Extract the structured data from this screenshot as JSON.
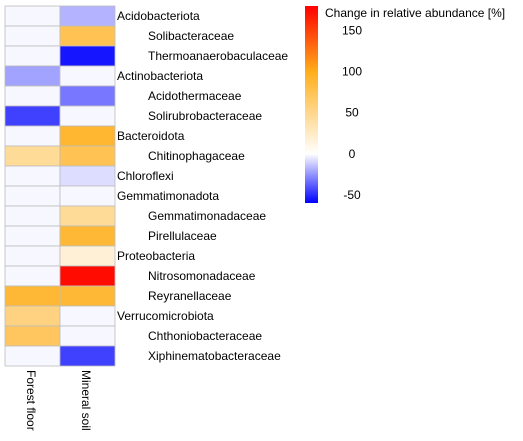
{
  "chart_data": {
    "type": "heatmap",
    "columns": [
      "Forest floor",
      "Mineral soil"
    ],
    "rows": [
      {
        "label": "Acidobacteriota",
        "level": "phylum",
        "values": [
          -2,
          -18
        ]
      },
      {
        "label": "Solibacteraceae",
        "level": "family",
        "values": [
          -2,
          75
        ]
      },
      {
        "label": "Thermoanaerobaculaceae",
        "level": "family",
        "values": [
          -2,
          -55
        ]
      },
      {
        "label": "Actinobacteriota",
        "level": "phylum",
        "values": [
          -22,
          -2
        ]
      },
      {
        "label": "Acidothermaceae",
        "level": "family",
        "values": [
          -2,
          -32
        ]
      },
      {
        "label": "Solirubrobacteraceae",
        "level": "family",
        "values": [
          -45,
          -2
        ]
      },
      {
        "label": "Bacteroidota",
        "level": "phylum",
        "values": [
          -2,
          90
        ]
      },
      {
        "label": "Chitinophagaceae",
        "level": "family",
        "values": [
          45,
          75
        ]
      },
      {
        "label": "Chloroflexi",
        "level": "phylum",
        "values": [
          -2,
          -8
        ]
      },
      {
        "label": "Gemmatimonadota",
        "level": "phylum",
        "values": [
          -2,
          -2
        ]
      },
      {
        "label": "Gemmatimonadaceae",
        "level": "family",
        "values": [
          -2,
          45
        ]
      },
      {
        "label": "Pirellulaceae",
        "level": "family",
        "values": [
          -2,
          88
        ]
      },
      {
        "label": "Proteobacteria",
        "level": "phylum",
        "values": [
          -2,
          18
        ]
      },
      {
        "label": "Nitrosomonadaceae",
        "level": "family",
        "values": [
          -2,
          175
        ]
      },
      {
        "label": "Reyranellaceae",
        "level": "family",
        "values": [
          88,
          88
        ]
      },
      {
        "label": "Verrucomicrobiota",
        "level": "phylum",
        "values": [
          55,
          -2
        ]
      },
      {
        "label": "Chthoniobacteraceae",
        "level": "family",
        "values": [
          70,
          -2
        ]
      },
      {
        "label": "Xiphinematobacteraceae",
        "level": "family",
        "values": [
          -2,
          -45
        ]
      }
    ],
    "colorbar": {
      "title": "Change in relative abundance [%]",
      "min": -60,
      "max": 180,
      "ticks": [
        150,
        100,
        50,
        0,
        -50
      ],
      "stops": [
        {
          "value": -60,
          "color": "#0000ff"
        },
        {
          "value": 0,
          "color": "#ffffff"
        },
        {
          "value": 100,
          "color": "#ffae1a"
        },
        {
          "value": 180,
          "color": "#ff0000"
        }
      ]
    },
    "grid": true,
    "legend": "top-right"
  }
}
